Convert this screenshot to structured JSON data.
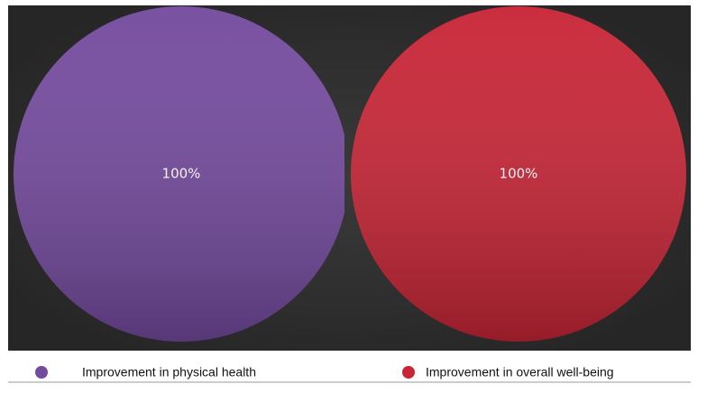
{
  "chart_data": [
    {
      "type": "pie",
      "categories": [
        "Improvement in physical health"
      ],
      "values": [
        100
      ],
      "value_labels": [
        "100%"
      ],
      "colors": [
        "#744a9e"
      ]
    },
    {
      "type": "pie",
      "categories": [
        "Improvement in overall well-being"
      ],
      "values": [
        100
      ],
      "value_labels": [
        "100%"
      ],
      "colors": [
        "#c82536"
      ]
    }
  ]
}
